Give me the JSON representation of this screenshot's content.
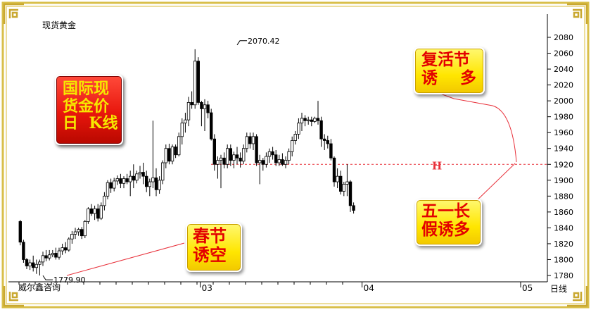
{
  "chart_data": {
    "type": "candlestick",
    "title": "现货黄金",
    "period_label": "日线",
    "watermark": "威尔鑫咨询",
    "ylim": [
      1780,
      2080
    ],
    "y_ticks": [
      1780,
      1800,
      1820,
      1840,
      1860,
      1880,
      1900,
      1920,
      1940,
      1960,
      1980,
      2000,
      2020,
      2040,
      2060,
      2080
    ],
    "x_tick_labels": [
      {
        "label": "03",
        "index": 56
      },
      {
        "label": "04",
        "index": 106
      },
      {
        "label": "05",
        "index": 155
      }
    ],
    "reference_line": {
      "value": 1920,
      "label": "H"
    },
    "high_marker": {
      "value": 2070.42,
      "label": "2070.42",
      "index": 67
    },
    "low_marker": {
      "value": 1779.9,
      "label": "1779.90",
      "index": 7
    },
    "candles": [
      [
        1848,
        1850,
        1818,
        1822
      ],
      [
        1822,
        1825,
        1796,
        1800
      ],
      [
        1800,
        1802,
        1788,
        1792
      ],
      [
        1792,
        1800,
        1787,
        1796
      ],
      [
        1796,
        1805,
        1785,
        1790
      ],
      [
        1790,
        1800,
        1782,
        1794
      ],
      [
        1794,
        1800,
        1780,
        1797
      ],
      [
        1797,
        1810,
        1792,
        1805
      ],
      [
        1805,
        1812,
        1798,
        1802
      ],
      [
        1802,
        1812,
        1799,
        1806
      ],
      [
        1806,
        1812,
        1803,
        1808
      ],
      [
        1808,
        1815,
        1800,
        1803
      ],
      [
        1803,
        1815,
        1800,
        1811
      ],
      [
        1811,
        1820,
        1806,
        1815
      ],
      [
        1815,
        1822,
        1808,
        1812
      ],
      [
        1812,
        1828,
        1810,
        1826
      ],
      [
        1826,
        1836,
        1820,
        1832
      ],
      [
        1832,
        1840,
        1826,
        1835
      ],
      [
        1835,
        1840,
        1830,
        1838
      ],
      [
        1838,
        1841,
        1826,
        1830
      ],
      [
        1830,
        1850,
        1827,
        1848
      ],
      [
        1848,
        1866,
        1845,
        1864
      ],
      [
        1864,
        1870,
        1855,
        1858
      ],
      [
        1858,
        1868,
        1850,
        1864
      ],
      [
        1864,
        1870,
        1848,
        1852
      ],
      [
        1852,
        1872,
        1850,
        1868
      ],
      [
        1868,
        1885,
        1862,
        1880
      ],
      [
        1880,
        1900,
        1876,
        1897
      ],
      [
        1897,
        1902,
        1884,
        1890
      ],
      [
        1890,
        1903,
        1886,
        1899
      ],
      [
        1899,
        1906,
        1894,
        1902
      ],
      [
        1902,
        1908,
        1890,
        1896
      ],
      [
        1896,
        1905,
        1890,
        1902
      ],
      [
        1902,
        1908,
        1895,
        1898
      ],
      [
        1898,
        1912,
        1880,
        1905
      ],
      [
        1905,
        1920,
        1890,
        1900
      ],
      [
        1900,
        1912,
        1896,
        1908
      ],
      [
        1908,
        1918,
        1902,
        1910
      ],
      [
        1910,
        1922,
        1895,
        1905
      ],
      [
        1905,
        1912,
        1885,
        1892
      ],
      [
        1892,
        1902,
        1880,
        1898
      ],
      [
        1898,
        1975,
        1890,
        1903
      ],
      [
        1903,
        1915,
        1880,
        1888
      ],
      [
        1888,
        1905,
        1883,
        1900
      ],
      [
        1900,
        1925,
        1895,
        1922
      ],
      [
        1922,
        1945,
        1915,
        1940
      ],
      [
        1940,
        1946,
        1920,
        1924
      ],
      [
        1924,
        1945,
        1920,
        1942
      ],
      [
        1942,
        1945,
        1928,
        1932
      ],
      [
        1932,
        1960,
        1930,
        1955
      ],
      [
        1955,
        1978,
        1945,
        1972
      ],
      [
        1972,
        1985,
        1960,
        1976
      ],
      [
        1976,
        2005,
        1968,
        1998
      ],
      [
        1998,
        2012,
        1990,
        1995
      ],
      [
        1995,
        2065,
        1990,
        2050
      ],
      [
        2050,
        2055,
        1995,
        1998
      ],
      [
        1998,
        2000,
        1968,
        1990
      ],
      [
        1990,
        2002,
        1962,
        1995
      ],
      [
        1995,
        2000,
        1978,
        1985
      ],
      [
        1985,
        1990,
        1950,
        1952
      ],
      [
        1952,
        1958,
        1912,
        1920
      ],
      [
        1920,
        1930,
        1902,
        1925
      ],
      [
        1925,
        1932,
        1890,
        1928
      ],
      [
        1928,
        1935,
        1915,
        1920
      ],
      [
        1920,
        1945,
        1915,
        1940
      ],
      [
        1940,
        1945,
        1918,
        1925
      ],
      [
        1925,
        1936,
        1915,
        1932
      ],
      [
        1932,
        1942,
        1920,
        1928
      ],
      [
        1928,
        1935,
        1916,
        1924
      ],
      [
        1924,
        1945,
        1920,
        1940
      ],
      [
        1940,
        1960,
        1935,
        1955
      ],
      [
        1955,
        1960,
        1940,
        1946
      ],
      [
        1946,
        1960,
        1938,
        1955
      ],
      [
        1955,
        1958,
        1918,
        1922
      ],
      [
        1922,
        1932,
        1895,
        1925
      ],
      [
        1925,
        1928,
        1912,
        1920
      ],
      [
        1920,
        1935,
        1916,
        1930
      ],
      [
        1930,
        1940,
        1922,
        1936
      ],
      [
        1936,
        1942,
        1926,
        1932
      ],
      [
        1932,
        1938,
        1918,
        1922
      ],
      [
        1922,
        1932,
        1918,
        1926
      ],
      [
        1926,
        1934,
        1918,
        1920
      ],
      [
        1920,
        1930,
        1915,
        1925
      ],
      [
        1925,
        1940,
        1920,
        1936
      ],
      [
        1936,
        1955,
        1930,
        1950
      ],
      [
        1950,
        1962,
        1945,
        1958
      ],
      [
        1958,
        1978,
        1952,
        1972
      ],
      [
        1972,
        1985,
        1962,
        1978
      ],
      [
        1978,
        1982,
        1968,
        1975
      ],
      [
        1975,
        1980,
        1970,
        1976
      ],
      [
        1976,
        1980,
        1968,
        1974
      ],
      [
        1974,
        1980,
        1972,
        1978
      ],
      [
        1978,
        2000,
        1970,
        1975
      ],
      [
        1975,
        1980,
        1942,
        1952
      ],
      [
        1952,
        1958,
        1938,
        1950
      ],
      [
        1950,
        1956,
        1940,
        1946
      ],
      [
        1946,
        1952,
        1925,
        1928
      ],
      [
        1928,
        1930,
        1892,
        1898
      ],
      [
        1898,
        1915,
        1890,
        1905
      ],
      [
        1905,
        1912,
        1882,
        1886
      ],
      [
        1886,
        1898,
        1880,
        1895
      ],
      [
        1895,
        1920,
        1880,
        1898
      ],
      [
        1898,
        1900,
        1860,
        1868
      ],
      [
        1868,
        1872,
        1858,
        1862
      ]
    ]
  },
  "annotations": {
    "gold_box": "国际现\n货金价\n日  K线",
    "spring": "春节\n诱空",
    "revival": "复活节\n诱    多",
    "mayday": "五一长\n假诱多"
  },
  "colors": {
    "up_fill": "#ffffff",
    "down_fill": "#000000",
    "reference": "#e8303a",
    "frame": "#d9bf4a"
  }
}
